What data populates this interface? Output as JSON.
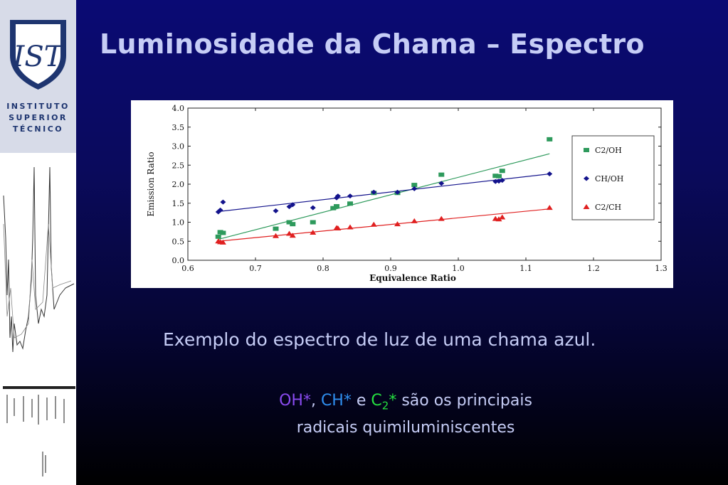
{
  "slide": {
    "title": "Luminosidade da Chama – Espectro",
    "caption": "Exemplo do espectro de luz de uma chama azul.",
    "radicals": {
      "oh": "OH",
      "ch": "CH",
      "c": "C",
      "c_sub": "2",
      "asterisk": "*",
      "comma": ",",
      "and": "e",
      "line1_rest": "são os principais",
      "line2": "radicais quimiluminiscentes"
    }
  },
  "logo": {
    "mark": "IST",
    "line1": "INSTITUTO",
    "line2": "SUPERIOR",
    "line3": "TÉCNICO",
    "color": "#1e3570"
  },
  "chart_data": {
    "type": "scatter",
    "xlabel": "Equivalence Ratio",
    "ylabel": "Emission Ratio",
    "xlim": [
      0.6,
      1.3
    ],
    "ylim": [
      0.0,
      4.0
    ],
    "xticks": [
      "0.6",
      "0.7",
      "0.8",
      "0.9",
      "1.0",
      "1.1",
      "1.2",
      "1.3"
    ],
    "yticks": [
      "0.0",
      "0.5",
      "1.0",
      "1.5",
      "2.0",
      "2.5",
      "3.0",
      "3.5",
      "4.0"
    ],
    "legend_position": "right",
    "series": [
      {
        "name": "C2/OH",
        "marker": "square",
        "color": "#2e9a5c",
        "points": [
          [
            0.645,
            0.62
          ],
          [
            0.648,
            0.74
          ],
          [
            0.652,
            0.72
          ],
          [
            0.73,
            0.83
          ],
          [
            0.75,
            1.0
          ],
          [
            0.755,
            0.95
          ],
          [
            0.785,
            1.0
          ],
          [
            0.815,
            1.37
          ],
          [
            0.82,
            1.42
          ],
          [
            0.84,
            1.49
          ],
          [
            0.875,
            1.77
          ],
          [
            0.91,
            1.77
          ],
          [
            0.935,
            1.98
          ],
          [
            0.975,
            2.25
          ],
          [
            1.055,
            2.22
          ],
          [
            1.06,
            2.21
          ],
          [
            1.065,
            2.35
          ],
          [
            1.135,
            3.18
          ]
        ],
        "fit": [
          [
            0.645,
            0.55
          ],
          [
            1.135,
            2.8
          ]
        ]
      },
      {
        "name": "CH/OH",
        "marker": "diamond",
        "color": "#13138c",
        "points": [
          [
            0.645,
            1.27
          ],
          [
            0.648,
            1.32
          ],
          [
            0.652,
            1.53
          ],
          [
            0.73,
            1.3
          ],
          [
            0.75,
            1.41
          ],
          [
            0.755,
            1.46
          ],
          [
            0.785,
            1.38
          ],
          [
            0.82,
            1.64
          ],
          [
            0.822,
            1.69
          ],
          [
            0.84,
            1.69
          ],
          [
            0.875,
            1.79
          ],
          [
            0.91,
            1.79
          ],
          [
            0.935,
            1.88
          ],
          [
            0.975,
            2.02
          ],
          [
            1.055,
            2.07
          ],
          [
            1.06,
            2.08
          ],
          [
            1.065,
            2.1
          ],
          [
            1.135,
            2.27
          ]
        ],
        "fit": [
          [
            0.645,
            1.28
          ],
          [
            1.135,
            2.27
          ]
        ]
      },
      {
        "name": "C2/CH",
        "marker": "triangle",
        "color": "#e02020",
        "points": [
          [
            0.645,
            0.5
          ],
          [
            0.648,
            0.48
          ],
          [
            0.652,
            0.47
          ],
          [
            0.73,
            0.64
          ],
          [
            0.75,
            0.7
          ],
          [
            0.755,
            0.65
          ],
          [
            0.785,
            0.73
          ],
          [
            0.82,
            0.85
          ],
          [
            0.822,
            0.84
          ],
          [
            0.84,
            0.87
          ],
          [
            0.875,
            0.94
          ],
          [
            0.91,
            0.95
          ],
          [
            0.935,
            1.03
          ],
          [
            0.975,
            1.09
          ],
          [
            1.055,
            1.09
          ],
          [
            1.06,
            1.08
          ],
          [
            1.065,
            1.13
          ],
          [
            1.135,
            1.38
          ]
        ],
        "fit": [
          [
            0.645,
            0.5
          ],
          [
            1.135,
            1.35
          ]
        ]
      }
    ]
  }
}
